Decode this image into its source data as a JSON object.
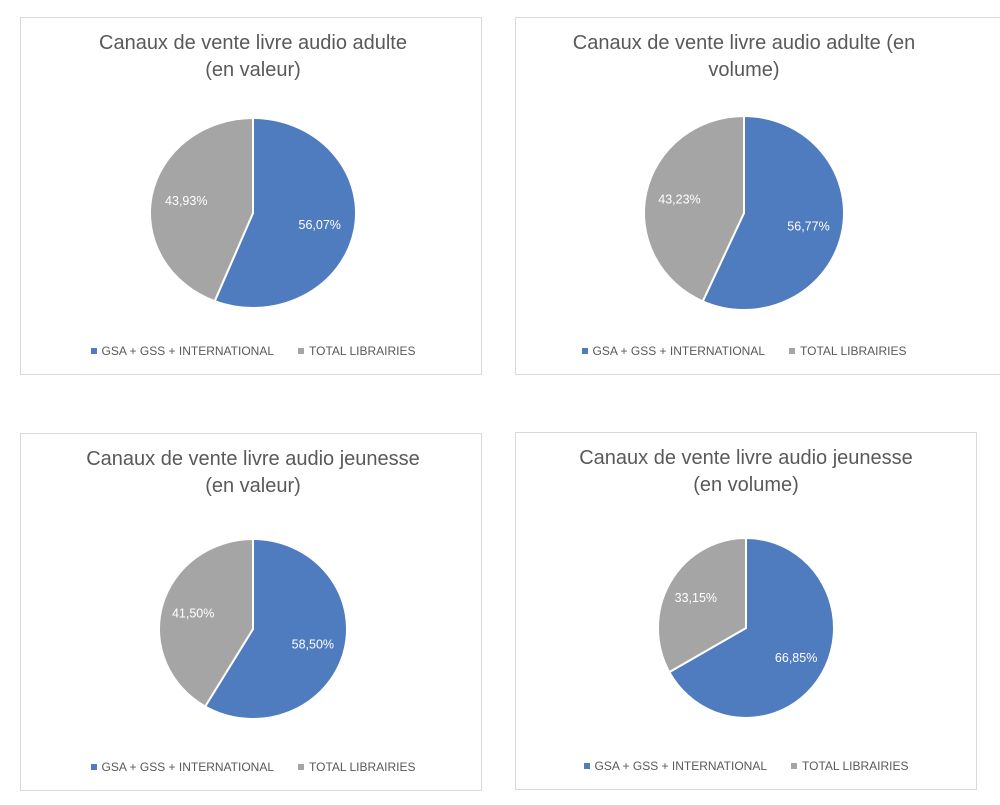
{
  "colors": {
    "series1": "#4f7bbf",
    "series2": "#a5a5a5"
  },
  "chart_data": [
    {
      "type": "pie",
      "title": [
        "Canaux de vente livre audio adulte",
        "(en valeur)"
      ],
      "labels": [
        "GSA + GSS + INTERNATIONAL",
        "TOTAL LIBRAIRIES"
      ],
      "values": [
        56.07,
        43.93
      ],
      "data_labels": [
        "56,07%",
        "43,93%"
      ],
      "legend": "bottom"
    },
    {
      "type": "pie",
      "title": [
        "Canaux de vente livre audio adulte (en",
        "volume)"
      ],
      "labels": [
        "GSA + GSS + INTERNATIONAL",
        "TOTAL LIBRAIRIES"
      ],
      "values": [
        56.77,
        43.23
      ],
      "data_labels": [
        "56,77%",
        "43,23%"
      ],
      "legend": "bottom"
    },
    {
      "type": "pie",
      "title": [
        "Canaux de vente livre audio jeunesse",
        "(en valeur)"
      ],
      "labels": [
        "GSA + GSS + INTERNATIONAL",
        "TOTAL LIBRAIRIES"
      ],
      "values": [
        58.5,
        41.5
      ],
      "data_labels": [
        "58,50%",
        "41,50%"
      ],
      "legend": "bottom"
    },
    {
      "type": "pie",
      "title": [
        "Canaux de vente livre audio jeunesse",
        "(en volume)"
      ],
      "labels": [
        "GSA + GSS + INTERNATIONAL",
        "TOTAL LIBRAIRIES"
      ],
      "values": [
        66.85,
        33.15
      ],
      "data_labels": [
        "66,85%",
        "33,15%"
      ],
      "legend": "bottom"
    }
  ]
}
